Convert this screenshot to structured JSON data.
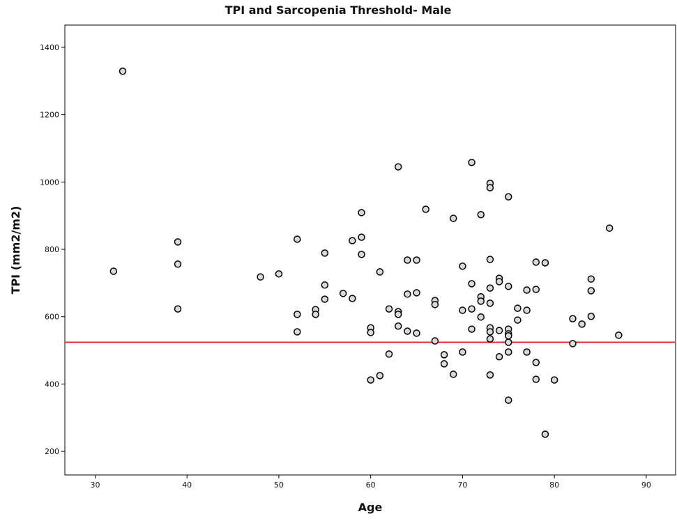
{
  "chart_data": {
    "type": "scatter",
    "title": "TPI and Sarcopenia Threshold- Male",
    "x_label": "Age",
    "y_label": "TPI (mm2/m2)",
    "xlim": [
      26.7,
      93.2
    ],
    "xticks": [
      30,
      40,
      50,
      60,
      70,
      80,
      90
    ],
    "ylim": [
      130,
      1466
    ],
    "yticks": [
      200,
      400,
      600,
      800,
      1000,
      1200,
      1400
    ],
    "threshold": 524,
    "threshold_color": "#e8262a",
    "marker_color": "#d9d9d9",
    "x": [
      32,
      33,
      39,
      39,
      39,
      48,
      50,
      52,
      52,
      52,
      54,
      54,
      55,
      55,
      55,
      57,
      58,
      58,
      59,
      59,
      59,
      61,
      60,
      60,
      60,
      62,
      61,
      62,
      63,
      63,
      63,
      63,
      64,
      64,
      64,
      65,
      65,
      65,
      66,
      67,
      67,
      67,
      68,
      68,
      69,
      69,
      70,
      70,
      70,
      71,
      71,
      71,
      71,
      72,
      72,
      72,
      72,
      73,
      73,
      73,
      73,
      73,
      73,
      73,
      73,
      73,
      74,
      74,
      74,
      74,
      75,
      75,
      75,
      75,
      75,
      75,
      75,
      75,
      76,
      76,
      77,
      77,
      77,
      78,
      78,
      78,
      78,
      79,
      79,
      80,
      82,
      82,
      83,
      84,
      84,
      84,
      86,
      87
    ],
    "y": [
      735,
      1329,
      822,
      756,
      623,
      718,
      727,
      830,
      607,
      555,
      621,
      607,
      789,
      694,
      652,
      669,
      654,
      826,
      836,
      909,
      785,
      733,
      412,
      567,
      553,
      489,
      425,
      623,
      1045,
      615,
      607,
      572,
      557,
      667,
      768,
      768,
      671,
      551,
      919,
      648,
      636,
      528,
      487,
      460,
      892,
      429,
      750,
      619,
      495,
      1058,
      698,
      623,
      563,
      903,
      659,
      646,
      599,
      996,
      983,
      770,
      685,
      640,
      567,
      555,
      534,
      427,
      714,
      704,
      559,
      481,
      956,
      690,
      563,
      549,
      543,
      524,
      495,
      352,
      625,
      590,
      679,
      619,
      495,
      762,
      681,
      464,
      414,
      760,
      251,
      412,
      594,
      520,
      578,
      712,
      677,
      601,
      863,
      545
    ]
  }
}
